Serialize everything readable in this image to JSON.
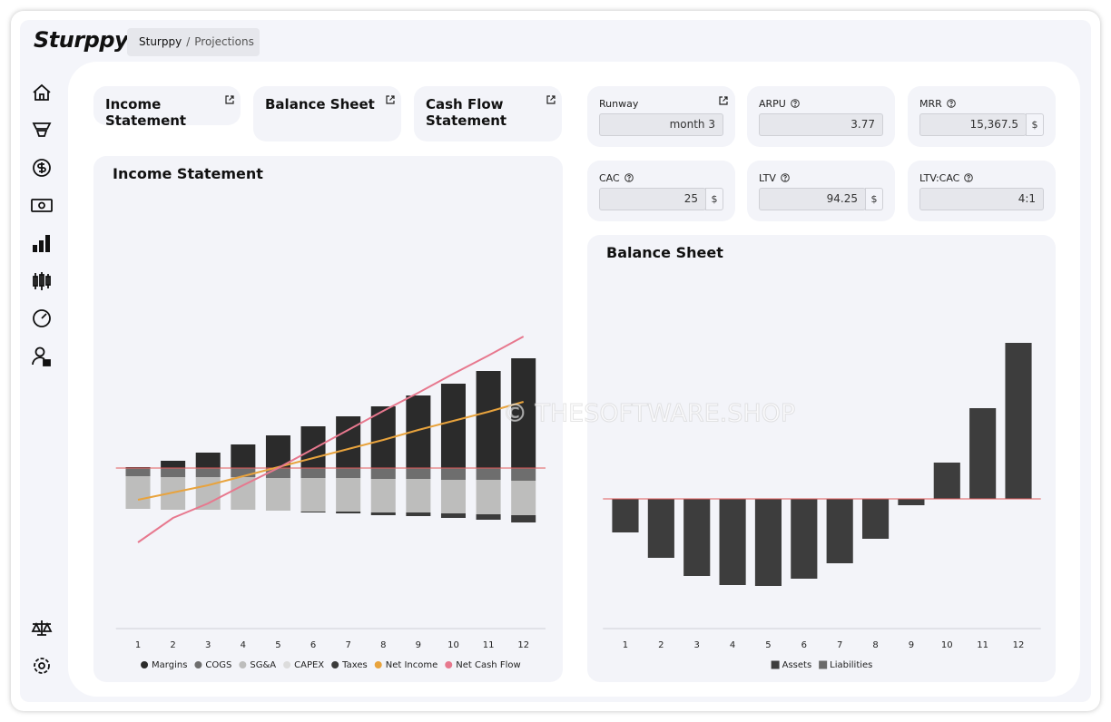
{
  "app": {
    "logo": "Sturppy",
    "watermark": "© THESOFTWARE.SHOP"
  },
  "breadcrumb": [
    "Sturppy",
    "/",
    "Projections"
  ],
  "tabs": [
    "Income Statement",
    "Balance Sheet",
    "Cash Flow Statement"
  ],
  "metrics": [
    {
      "label": "Runway",
      "value": "month 3"
    },
    {
      "label": "ARPU",
      "value": "3.77"
    },
    {
      "label": "MRR",
      "value": "15,367.5",
      "unit": "$"
    },
    {
      "label": "CAC",
      "value": "25",
      "unit": "$"
    },
    {
      "label": "LTV",
      "value": "94.25",
      "unit": "$"
    },
    {
      "label": "LTV:CAC",
      "value": "4:1"
    }
  ],
  "chart_data": [
    {
      "type": "bar",
      "title": "Income Statement",
      "stacked": true,
      "categories": [
        1,
        2,
        3,
        4,
        5,
        6,
        7,
        8,
        9,
        10,
        11,
        12
      ],
      "ylim": [
        -18,
        31
      ],
      "series": [
        {
          "name": "Margins",
          "color": "#2b2b2b",
          "type": "bar",
          "values": [
            0.1,
            0.8,
            1.7,
            2.6,
            3.6,
            4.6,
            5.7,
            6.8,
            8.0,
            9.3,
            10.7,
            12.1
          ]
        },
        {
          "name": "COGS",
          "color": "#6e6e6e",
          "type": "bar",
          "values": [
            -0.9,
            -1.0,
            -1.0,
            -1.0,
            -1.1,
            -1.1,
            -1.1,
            -1.2,
            -1.2,
            -1.3,
            -1.3,
            -1.4
          ]
        },
        {
          "name": "SG&A",
          "color": "#bdbdbc",
          "type": "bar",
          "values": [
            -3.6,
            -3.6,
            -3.6,
            -3.6,
            -3.6,
            -3.7,
            -3.7,
            -3.7,
            -3.7,
            -3.7,
            -3.8,
            -3.8
          ]
        },
        {
          "name": "CAPEX",
          "color": "#dcdcdc",
          "type": "bar",
          "values": [
            0,
            0,
            0,
            0,
            0,
            0,
            0,
            0,
            0,
            0,
            0,
            0
          ]
        },
        {
          "name": "Taxes",
          "color": "#3b3b3b",
          "type": "bar",
          "values": [
            0,
            0,
            0,
            0,
            0,
            -0.1,
            -0.2,
            -0.3,
            -0.4,
            -0.5,
            -0.6,
            -0.8
          ]
        },
        {
          "name": "Net Income",
          "color": "#e8a33d",
          "type": "line",
          "values": [
            -3.5,
            -2.7,
            -1.9,
            -0.9,
            0.1,
            1.1,
            2.1,
            3.1,
            4.2,
            5.2,
            6.2,
            7.3
          ]
        },
        {
          "name": "Net Cash Flow",
          "color": "#e7788e",
          "type": "line",
          "values": [
            -8.2,
            -5.5,
            -3.9,
            -1.9,
            0,
            2.1,
            4.2,
            6.3,
            8.3,
            10.4,
            12.4,
            14.5
          ]
        }
      ]
    },
    {
      "type": "bar",
      "title": "Balance Sheet",
      "stacked": true,
      "categories": [
        1,
        2,
        3,
        4,
        5,
        6,
        7,
        8,
        9,
        10,
        11,
        12
      ],
      "ylim": [
        -14,
        26
      ],
      "series": [
        {
          "name": "Assets",
          "color": "#3d3d3d",
          "type": "bar",
          "values": [
            -3.7,
            -6.5,
            -8.5,
            -9.5,
            -9.6,
            -8.8,
            -7.1,
            -4.4,
            -0.7,
            4.0,
            10.0,
            17.2
          ]
        },
        {
          "name": "Liabilities",
          "color": "#6a6a6a",
          "type": "bar",
          "values": [
            null,
            null,
            null,
            null,
            null,
            null,
            null,
            null,
            null,
            null,
            null,
            null
          ]
        }
      ]
    }
  ]
}
